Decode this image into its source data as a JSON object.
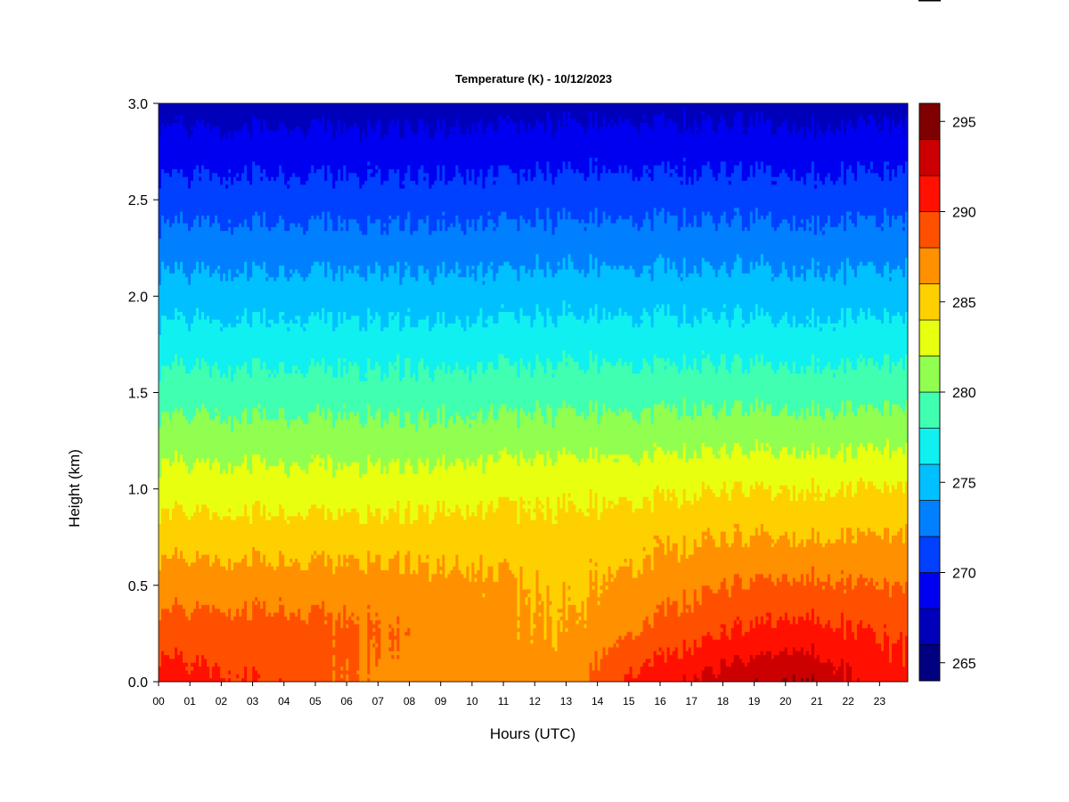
{
  "chart_data": {
    "type": "heatmap",
    "title": "Temperature (K) - 10/12/2023",
    "xlabel": "Hours (UTC)",
    "ylabel": "Height (km)",
    "x_ticks": [
      "00",
      "01",
      "02",
      "03",
      "04",
      "05",
      "06",
      "07",
      "08",
      "09",
      "10",
      "11",
      "12",
      "13",
      "14",
      "15",
      "16",
      "17",
      "18",
      "19",
      "20",
      "21",
      "22",
      "23"
    ],
    "xlim": [
      0,
      23.9
    ],
    "y_ticks": [
      "0.0",
      "0.5",
      "1.0",
      "1.5",
      "2.0",
      "2.5",
      "3.0"
    ],
    "ylim": [
      0,
      3.0
    ],
    "colorbar": {
      "ticks": [
        "265",
        "270",
        "275",
        "280",
        "285",
        "290",
        "295"
      ],
      "range": [
        264,
        296
      ],
      "levels": [
        {
          "from": 264,
          "to": 266,
          "color": "#000080"
        },
        {
          "from": 266,
          "to": 268,
          "color": "#0000bb"
        },
        {
          "from": 268,
          "to": 270,
          "color": "#0000f0"
        },
        {
          "from": 270,
          "to": 272,
          "color": "#0040ff"
        },
        {
          "from": 272,
          "to": 274,
          "color": "#0080ff"
        },
        {
          "from": 274,
          "to": 276,
          "color": "#00c0ff"
        },
        {
          "from": 276,
          "to": 278,
          "color": "#10f0f0"
        },
        {
          "from": 278,
          "to": 280,
          "color": "#40ffb0"
        },
        {
          "from": 280,
          "to": 282,
          "color": "#90ff50"
        },
        {
          "from": 282,
          "to": 284,
          "color": "#e8ff10"
        },
        {
          "from": 284,
          "to": 286,
          "color": "#ffd000"
        },
        {
          "from": 286,
          "to": 288,
          "color": "#ff9000"
        },
        {
          "from": 288,
          "to": 290,
          "color": "#ff5000"
        },
        {
          "from": 290,
          "to": 292,
          "color": "#ff1000"
        },
        {
          "from": 292,
          "to": 294,
          "color": "#cc0000"
        },
        {
          "from": 294,
          "to": 296,
          "color": "#800000"
        }
      ]
    },
    "field_profiles": [
      {
        "hour": 0,
        "temps_at_heights": [
          291,
          289,
          287,
          285,
          283,
          281,
          279,
          277,
          275,
          273,
          271,
          269,
          267
        ]
      },
      {
        "hour": 4,
        "temps_at_heights": [
          289.5,
          289,
          287,
          285,
          283,
          281,
          279,
          277,
          275,
          273,
          271,
          269,
          267
        ]
      },
      {
        "hour": 7,
        "temps_at_heights": [
          287.5,
          288,
          287,
          285,
          283,
          281,
          279,
          277,
          275,
          273,
          271,
          269,
          267
        ]
      },
      {
        "hour": 10,
        "temps_at_heights": [
          286.5,
          287,
          286.5,
          285,
          283.3,
          281,
          279,
          277,
          275,
          273,
          271,
          269,
          267
        ]
      },
      {
        "hour": 13,
        "temps_at_heights": [
          287,
          286,
          285.5,
          284.8,
          283.5,
          281.3,
          279.2,
          277.2,
          275.2,
          273.2,
          271.2,
          269.2,
          267.2
        ]
      },
      {
        "hour": 15,
        "temps_at_heights": [
          290.5,
          288,
          286.5,
          285.3,
          283.5,
          281.3,
          279.2,
          277.2,
          275.2,
          273.2,
          271.2,
          269.2,
          267.2
        ]
      },
      {
        "hour": 18,
        "temps_at_heights": [
          293,
          290,
          288,
          286,
          284,
          281.5,
          279.3,
          277.2,
          275.2,
          273.2,
          271.2,
          269.2,
          267.2
        ]
      },
      {
        "hour": 20.5,
        "temps_at_heights": [
          294.5,
          291,
          288.5,
          286,
          284,
          281.5,
          279.2,
          277.1,
          275.1,
          273.1,
          271.1,
          269.1,
          267.1
        ]
      },
      {
        "hour": 23,
        "temps_at_heights": [
          291,
          289.8,
          288,
          286,
          284,
          281.5,
          279.2,
          277.1,
          275.1,
          273.1,
          271.1,
          269.1,
          267.1
        ]
      },
      {
        "hour": 23.9,
        "temps_at_heights": [
          290.5,
          289.5,
          287.8,
          286,
          284,
          281.5,
          279.2,
          277.1,
          275.1,
          273.1,
          271.1,
          269.1,
          267.1
        ]
      }
    ],
    "profile_heights_km": [
      0,
      0.25,
      0.5,
      0.75,
      1.0,
      1.25,
      1.5,
      1.75,
      2.0,
      2.25,
      2.5,
      2.75,
      3.0
    ],
    "grid": false,
    "legend": "colorbar-right"
  }
}
